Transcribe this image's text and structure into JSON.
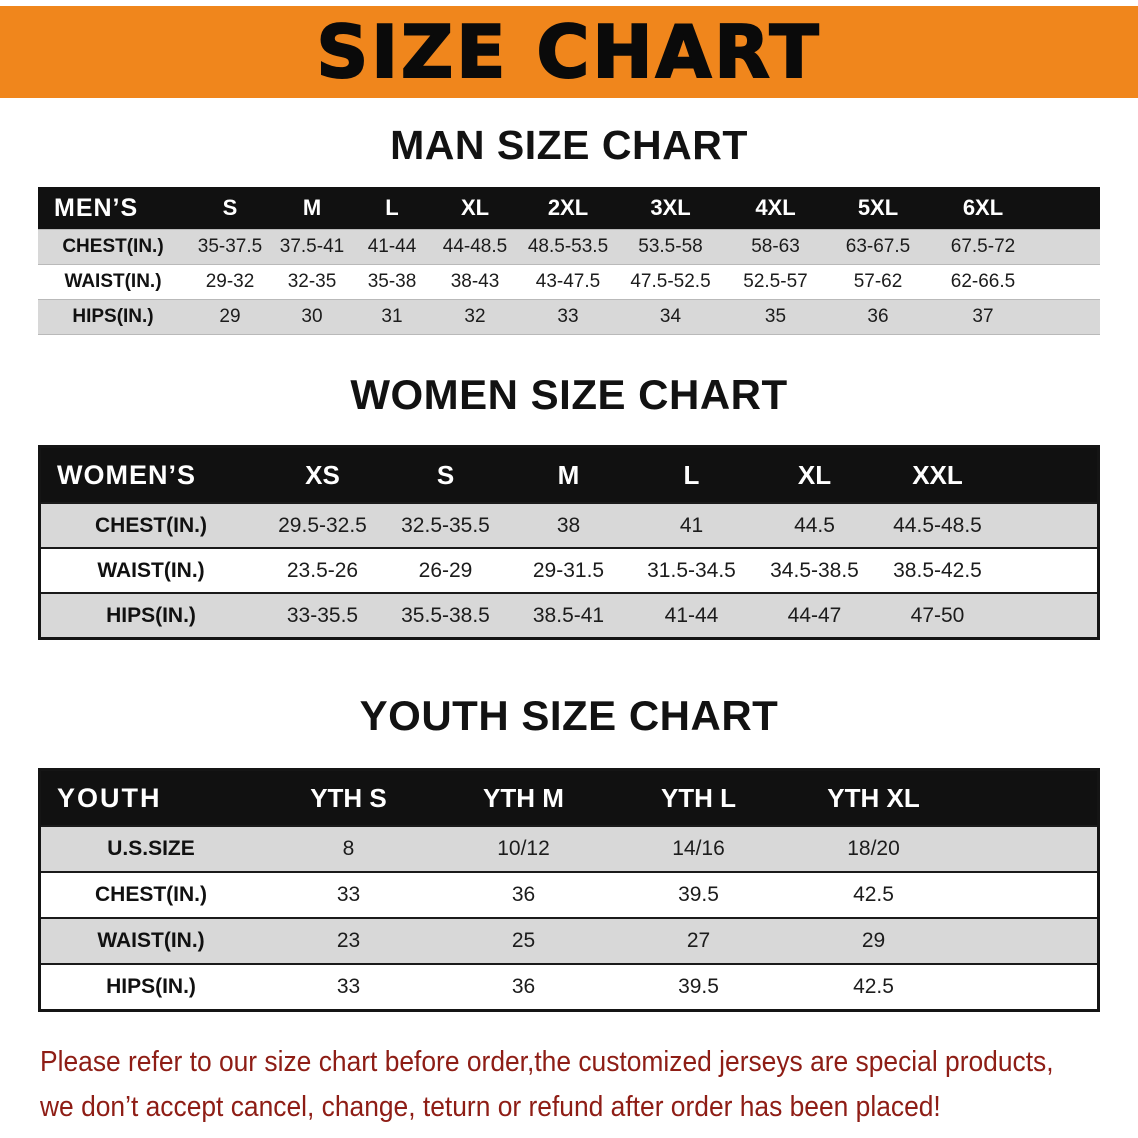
{
  "banner": {
    "title": "SIZE CHART"
  },
  "colors": {
    "banner_bg": "#f0861c",
    "table_header_bg": "#111111",
    "stripe": "#d8d8d8",
    "footer_text": "#8e1d15"
  },
  "men": {
    "heading": "MAN SIZE CHART",
    "table": {
      "label": "MEN’S",
      "columns": [
        "S",
        "M",
        "L",
        "XL",
        "2XL",
        "3XL",
        "4XL",
        "5XL",
        "6XL"
      ],
      "rows": [
        {
          "label": "CHEST(IN.)",
          "values": [
            "35-37.5",
            "37.5-41",
            "41-44",
            "44-48.5",
            "48.5-53.5",
            "53.5-58",
            "58-63",
            "63-67.5",
            "67.5-72"
          ]
        },
        {
          "label": "WAIST(IN.)",
          "values": [
            "29-32",
            "32-35",
            "35-38",
            "38-43",
            "43-47.5",
            "47.5-52.5",
            "52.5-57",
            "57-62",
            "62-66.5"
          ]
        },
        {
          "label": "HIPS(IN.)",
          "values": [
            "29",
            "30",
            "31",
            "32",
            "33",
            "34",
            "35",
            "36",
            "37"
          ]
        }
      ]
    }
  },
  "women": {
    "heading": "WOMEN SIZE CHART",
    "table": {
      "label": "WOMEN’S",
      "columns": [
        "XS",
        "S",
        "M",
        "L",
        "XL",
        "XXL"
      ],
      "rows": [
        {
          "label": "CHEST(IN.)",
          "values": [
            "29.5-32.5",
            "32.5-35.5",
            "38",
            "41",
            "44.5",
            "44.5-48.5"
          ]
        },
        {
          "label": "WAIST(IN.)",
          "values": [
            "23.5-26",
            "26-29",
            "29-31.5",
            "31.5-34.5",
            "34.5-38.5",
            "38.5-42.5"
          ]
        },
        {
          "label": "HIPS(IN.)",
          "values": [
            "33-35.5",
            "35.5-38.5",
            "38.5-41",
            "41-44",
            "44-47",
            "47-50"
          ]
        }
      ]
    }
  },
  "youth": {
    "heading": "YOUTH SIZE CHART",
    "table": {
      "label": "YOUTH",
      "columns": [
        "YTH S",
        "YTH M",
        "YTH L",
        "YTH XL"
      ],
      "rows": [
        {
          "label": "U.S.SIZE",
          "values": [
            "8",
            "10/12",
            "14/16",
            "18/20"
          ]
        },
        {
          "label": "CHEST(IN.)",
          "values": [
            "33",
            "36",
            "39.5",
            "42.5"
          ]
        },
        {
          "label": "WAIST(IN.)",
          "values": [
            "23",
            "25",
            "27",
            "29"
          ]
        },
        {
          "label": "HIPS(IN.)",
          "values": [
            "33",
            "36",
            "39.5",
            "42.5"
          ]
        }
      ]
    }
  },
  "footer": {
    "line1": "Please refer to our size chart before order,the customized jerseys are special products,",
    "line2": "we don’t accept cancel, change, teturn or refund after order has been placed!"
  }
}
